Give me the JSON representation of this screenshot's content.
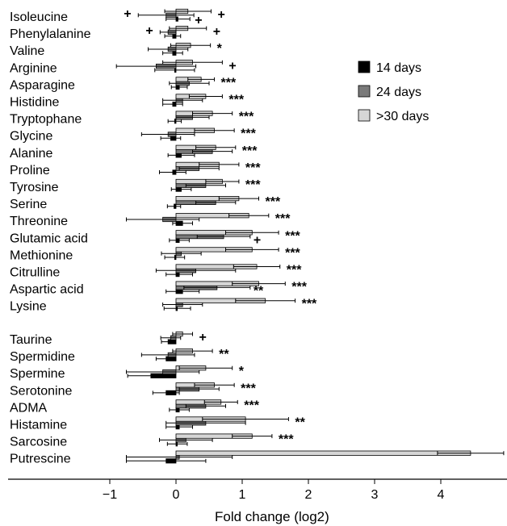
{
  "chart_data": {
    "type": "bar",
    "orientation": "horizontal",
    "title": "",
    "xlabel": "Fold change (log2)",
    "ylabel": "",
    "xlim": [
      -1.75,
      4.95
    ],
    "xticks": [
      -1,
      0,
      1,
      2,
      3,
      4
    ],
    "grid": false,
    "legend_position": "top-right",
    "colors": {
      "d14": "#000000",
      "d24": "#7a7a7a",
      "d30": "#d6d6d6",
      "outline": "#000000"
    },
    "series": [
      {
        "name": "14 days",
        "key": "d14"
      },
      {
        "name": "24 days",
        "key": "d24"
      },
      {
        "name": ">30 days",
        "key": "d30"
      }
    ],
    "groups": [
      {
        "items": [
          {
            "name": "Isoleucine",
            "d14": 0.03,
            "d14_err": 0.18,
            "d24": -0.15,
            "d24_err": 0.42,
            "d30": 0.18,
            "d30_err": 0.35,
            "sig": "+",
            "sig_label": "+",
            "sig_label_2": "+"
          },
          {
            "name": "Phenylalanine",
            "d14": -0.05,
            "d14_err": 0.12,
            "d24": -0.12,
            "d24_err": 0.12,
            "d30": 0.18,
            "d30_err": 0.28,
            "sig": "+",
            "sig_label": "+"
          },
          {
            "name": "Valine",
            "d14": -0.05,
            "d14_err": 0.15,
            "d24": -0.12,
            "d24_err": 0.3,
            "d30": 0.22,
            "d30_err": 0.3,
            "sig": "*"
          },
          {
            "name": "Arginine",
            "d14": -0.02,
            "d14_err": 0.3,
            "d24": -0.3,
            "d24_err": 0.6,
            "d30": 0.25,
            "d30_err": 0.45,
            "sig": "+"
          },
          {
            "name": "Asparagine",
            "d14": 0.05,
            "d14_err": 0.12,
            "d24": 0.2,
            "d24_err": 0.3,
            "d30": 0.38,
            "d30_err": 0.2,
            "sig": "***"
          },
          {
            "name": "Histidine",
            "d14": -0.05,
            "d14_err": 0.15,
            "d24": 0.1,
            "d24_err": 0.3,
            "d30": 0.45,
            "d30_err": 0.25,
            "sig": "***"
          },
          {
            "name": "Tryptophane",
            "d14": -0.02,
            "d14_err": 0.1,
            "d24": 0.25,
            "d24_err": 0.25,
            "d30": 0.55,
            "d30_err": 0.3,
            "sig": "***"
          },
          {
            "name": "Glycine",
            "d14": -0.08,
            "d14_err": 0.15,
            "d24": -0.12,
            "d24_err": 0.4,
            "d30": 0.58,
            "d30_err": 0.3,
            "sig": "***"
          },
          {
            "name": "Alanine",
            "d14": 0.08,
            "d14_err": 0.2,
            "d24": 0.55,
            "d24_err": 0.3,
            "d30": 0.6,
            "d30_err": 0.3,
            "sig": "***"
          },
          {
            "name": "Proline",
            "d14": -0.05,
            "d14_err": 0.2,
            "d24": 0.35,
            "d24_err": 0.3,
            "d30": 0.65,
            "d30_err": 0.3,
            "sig": "***"
          },
          {
            "name": "Tyrosine",
            "d14": 0.08,
            "d14_err": 0.15,
            "d24": 0.45,
            "d24_err": 0.3,
            "d30": 0.7,
            "d30_err": 0.25,
            "sig": "***"
          },
          {
            "name": "Serine",
            "d14": -0.03,
            "d14_err": 0.1,
            "d24": 0.6,
            "d24_err": 0.3,
            "d30": 0.95,
            "d30_err": 0.3,
            "sig": "***"
          },
          {
            "name": "Threonine",
            "d14": 0.1,
            "d14_err": 0.15,
            "d24": -0.2,
            "d24_err": 0.55,
            "d30": 1.1,
            "d30_err": 0.3,
            "sig": "***"
          },
          {
            "name": "Glutamic acid",
            "d14": 0.05,
            "d14_err": 0.15,
            "d24": 0.72,
            "d24_err": 0.4,
            "d30": 1.15,
            "d30_err": 0.4,
            "sig": "***",
            "sig_24": "+"
          },
          {
            "name": "Methionine",
            "d14": -0.02,
            "d14_err": 0.15,
            "d24": 0.08,
            "d24_err": 0.3,
            "d30": 1.15,
            "d30_err": 0.4,
            "sig": "***"
          },
          {
            "name": "Citrulline",
            "d14": 0.05,
            "d14_err": 0.2,
            "d24": 0.3,
            "d24_err": 0.6,
            "d30": 1.22,
            "d30_err": 0.35,
            "sig": "***"
          },
          {
            "name": "Aspartic acid",
            "d14": 0.1,
            "d14_err": 0.25,
            "d24": 0.62,
            "d24_err": 0.5,
            "d30": 1.25,
            "d30_err": 0.4,
            "sig": "***",
            "sig_24": "**"
          },
          {
            "name": "Lysine",
            "d14": 0.02,
            "d14_err": 0.2,
            "d24": 0.1,
            "d24_err": 0.3,
            "d30": 1.35,
            "d30_err": 0.45,
            "sig": "***"
          }
        ]
      },
      {
        "items": [
          {
            "name": "Taurine",
            "d14": -0.12,
            "d14_err": 0.1,
            "d24": -0.08,
            "d24_err": 0.15,
            "d30": 0.1,
            "d30_err": 0.15,
            "sig": "+"
          },
          {
            "name": "Spermidine",
            "d14": -0.15,
            "d14_err": 0.15,
            "d24": -0.12,
            "d24_err": 0.4,
            "d30": 0.25,
            "d30_err": 0.3,
            "sig": "**"
          },
          {
            "name": "Spermine",
            "d14": -0.38,
            "d14_err": 0.35,
            "d24": -0.2,
            "d24_err": 0.55,
            "d30": 0.45,
            "d30_err": 0.4,
            "sig": "*"
          },
          {
            "name": "Serotonine",
            "d14": -0.15,
            "d14_err": 0.2,
            "d24": 0.35,
            "d24_err": 0.3,
            "d30": 0.58,
            "d30_err": 0.3,
            "sig": "***"
          },
          {
            "name": "ADMA",
            "d14": 0.05,
            "d14_err": 0.15,
            "d24": 0.45,
            "d24_err": 0.3,
            "d30": 0.68,
            "d30_err": 0.25,
            "sig": "***"
          },
          {
            "name": "Histamine",
            "d14": 0.05,
            "d14_err": 0.2,
            "d24": 0.45,
            "d24_err": 0.6,
            "d30": 1.05,
            "d30_err": 0.65,
            "sig": "**"
          },
          {
            "name": "Sarcosine",
            "d14": 0.02,
            "d14_err": 0.15,
            "d24": 0.15,
            "d24_err": 0.4,
            "d30": 1.15,
            "d30_err": 0.3,
            "sig": "***"
          },
          {
            "name": "Putrescine",
            "d14": -0.15,
            "d14_err": 0.6,
            "d24": 0.05,
            "d24_err": 0.8,
            "d30": 4.45,
            "d30_err": 0.5,
            "sig": "***"
          }
        ]
      }
    ]
  }
}
